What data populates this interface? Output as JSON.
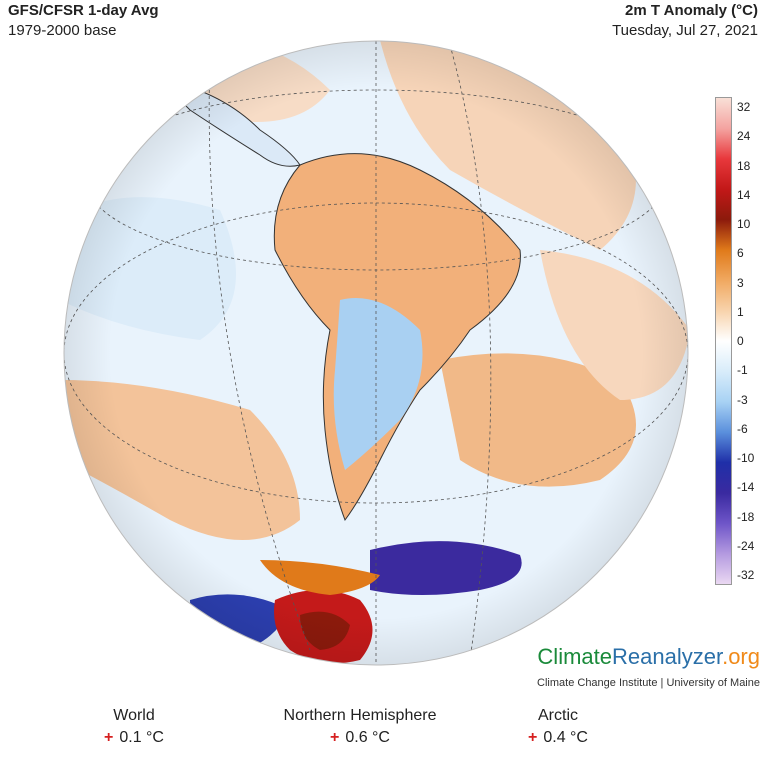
{
  "header": {
    "left_title": "GFS/CFSR 1-day Avg",
    "left_subtitle": "1979-2000 base",
    "right_title": "2m T Anomaly (°C)",
    "right_subtitle": "Tuesday, Jul 27, 2021"
  },
  "legend": {
    "ticks": [
      "32",
      "24",
      "18",
      "14",
      "10",
      "6",
      "3",
      "1",
      "0",
      "-1",
      "-3",
      "-6",
      "-10",
      "-14",
      "-18",
      "-24",
      "-32"
    ],
    "colors": [
      "#f9e0d7",
      "#f4a3a0",
      "#e8383c",
      "#c21818",
      "#8c1a0c",
      "#e07a1a",
      "#f0a860",
      "#f8d3ac",
      "#ffffff",
      "#d8ecfa",
      "#a8d2f4",
      "#5a8fdc",
      "#1f2fa8",
      "#3a2aa0",
      "#6e55c8",
      "#b49ae0",
      "#ead8f2"
    ]
  },
  "brand": {
    "climate": "Climate",
    "reanalyzer": "Reanalyzer",
    "org": ".org",
    "subtitle": "Climate Change Institute | University of Maine"
  },
  "stats": [
    {
      "region": "World",
      "sign": "+",
      "value": "0.1 °C"
    },
    {
      "region": "Northern Hemisphere",
      "sign": "+",
      "value": "0.6 °C"
    },
    {
      "region": "Arctic",
      "sign": "+",
      "value": "0.4 °C"
    }
  ]
}
